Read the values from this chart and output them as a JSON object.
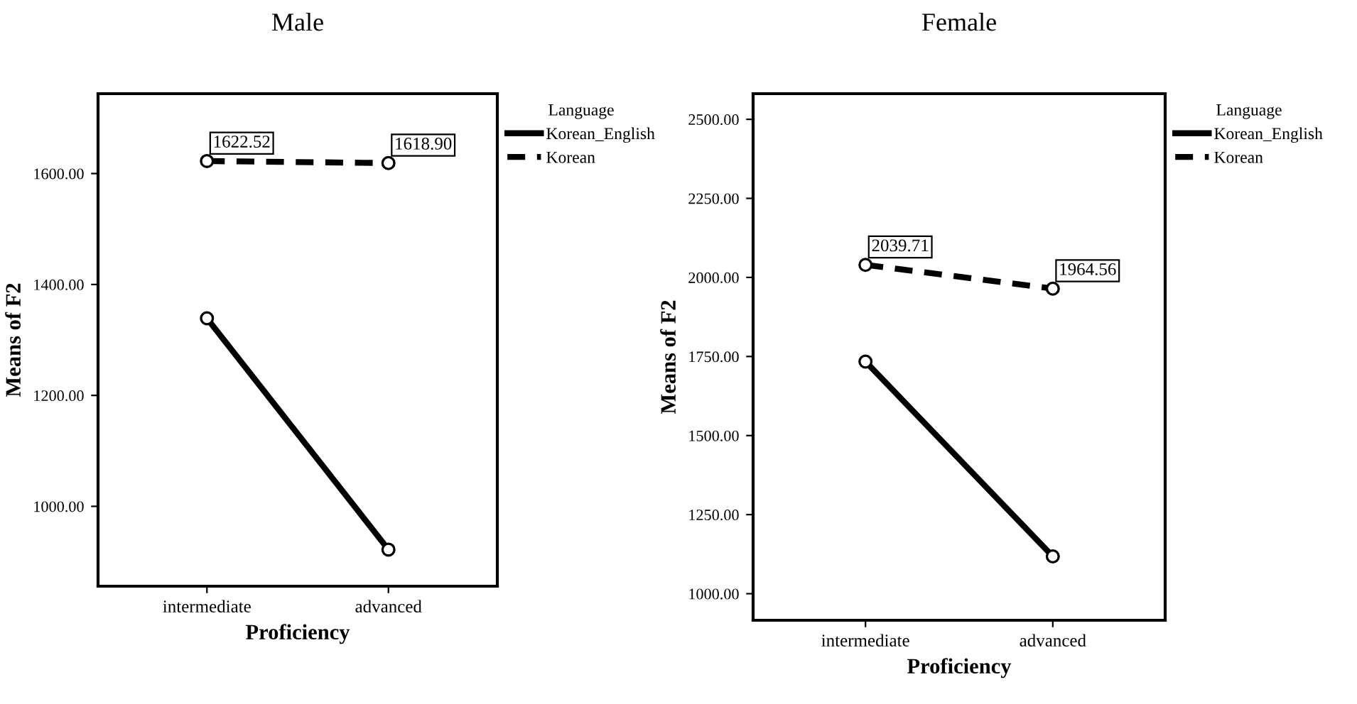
{
  "chart_data": [
    {
      "type": "line",
      "title": "Male",
      "xlabel": "Proficiency",
      "ylabel": "Means of F2",
      "legend_title": "Language",
      "legend": "right",
      "grid": false,
      "marker": "circle",
      "categories": [
        "intermediate",
        "advanced"
      ],
      "ylim": [
        856,
        1744
      ],
      "yticks": [
        {
          "value": 1000,
          "label": "1000.00"
        },
        {
          "value": 1200,
          "label": "1200.00"
        },
        {
          "value": 1400,
          "label": "1400.00"
        },
        {
          "value": 1600,
          "label": "1600.00"
        }
      ],
      "series": [
        {
          "name": "Korean_English",
          "color": "#000000",
          "line_style": "solid",
          "values": [
            1339,
            922
          ]
        },
        {
          "name": "Korean",
          "color": "#000000",
          "line_style": "dashed",
          "values": [
            1622.52,
            1618.9
          ],
          "value_labels": [
            "1622.52",
            "1618.90"
          ]
        }
      ]
    },
    {
      "type": "line",
      "title": "Female",
      "xlabel": "Proficiency",
      "ylabel": "Means of F2",
      "legend_title": "Language",
      "legend": "right",
      "grid": false,
      "marker": "circle",
      "categories": [
        "intermediate",
        "advanced"
      ],
      "ylim": [
        916,
        2581
      ],
      "yticks": [
        {
          "value": 1000,
          "label": "1000.00"
        },
        {
          "value": 1250,
          "label": "1250.00"
        },
        {
          "value": 1500,
          "label": "1500.00"
        },
        {
          "value": 1750,
          "label": "1750.00"
        },
        {
          "value": 2000,
          "label": "2000.00"
        },
        {
          "value": 2250,
          "label": "2250.00"
        },
        {
          "value": 2500,
          "label": "2500.00"
        }
      ],
      "series": [
        {
          "name": "Korean_English",
          "color": "#000000",
          "line_style": "solid",
          "values": [
            1734,
            1118
          ]
        },
        {
          "name": "Korean",
          "color": "#000000",
          "line_style": "dashed",
          "values": [
            2039.71,
            1964.56
          ],
          "value_labels": [
            "2039.71",
            "1964.56"
          ]
        }
      ]
    }
  ]
}
